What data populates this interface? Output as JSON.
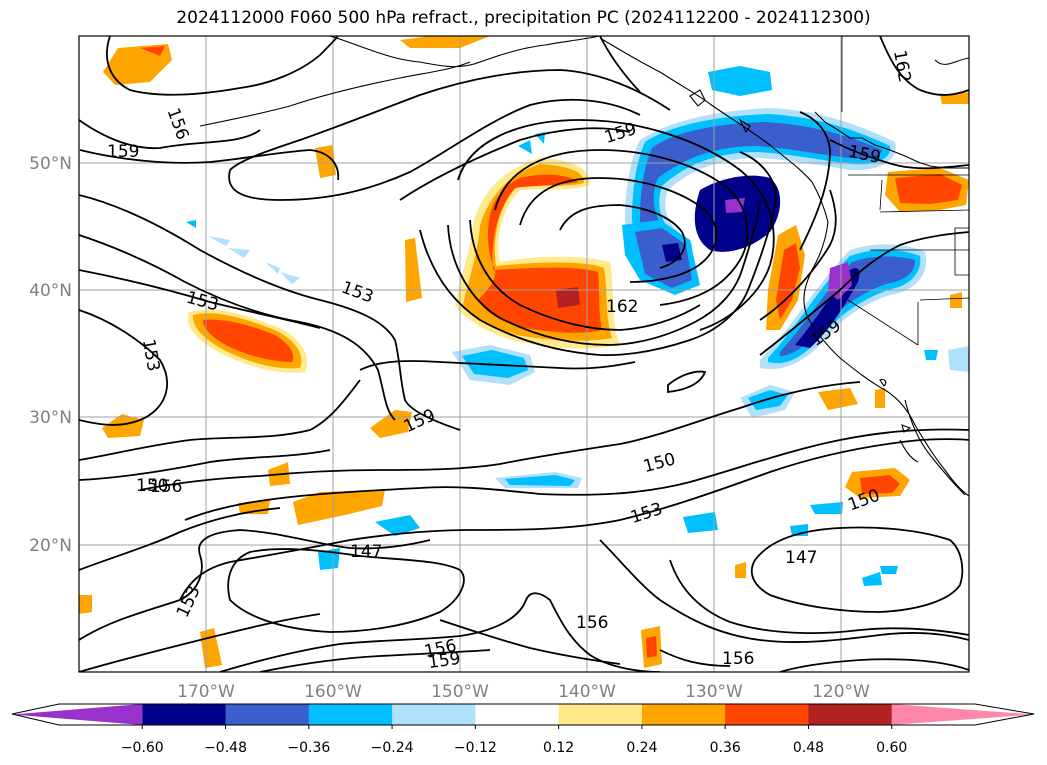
{
  "title": "2024112000 F060 500 hPa refract., precipitation PC (2024112200 - 2024112300)",
  "lat_ticks": [
    "50°N",
    "40°N",
    "30°N",
    "20°N"
  ],
  "lon_ticks": [
    "170°W",
    "160°W",
    "150°W",
    "140°W",
    "130°W",
    "120°W"
  ],
  "contour_labels": [
    "159",
    "156",
    "153",
    "153",
    "153",
    "159",
    "162",
    "159",
    "159",
    "159",
    "162",
    "156",
    "150",
    "150",
    "153",
    "150",
    "147",
    "147",
    "153",
    "156",
    "156",
    "156",
    "159"
  ],
  "colorbar": {
    "ticks": [
      "−0.60",
      "−0.48",
      "−0.36",
      "−0.24",
      "−0.12",
      "0.12",
      "0.24",
      "0.36",
      "0.48",
      "0.60"
    ],
    "colors": [
      "#9932cc",
      "#00008b",
      "#3a5fcd",
      "#00bfff",
      "#b0e0fa",
      "#ffffff",
      "#ffe98a",
      "#ffa500",
      "#ff4500",
      "#b22222",
      "#ff88aa"
    ]
  },
  "chart_data": {
    "type": "heatmap",
    "title": "2024112000 F060 500 hPa refract., precipitation PC (2024112200 - 2024112300)",
    "field_filled": "precipitation PC",
    "field_contoured": "500 hPa refractivity",
    "contour_levels": [
      147,
      150,
      153,
      156,
      159,
      162
    ],
    "lon_range": [
      "178°W",
      "109°W"
    ],
    "lat_range": [
      "10°N",
      "60°N"
    ],
    "color_levels": [
      -0.6,
      -0.48,
      -0.36,
      -0.24,
      -0.12,
      0.12,
      0.24,
      0.36,
      0.48,
      0.6
    ],
    "grid": true,
    "colorbar_position": "bottom"
  }
}
